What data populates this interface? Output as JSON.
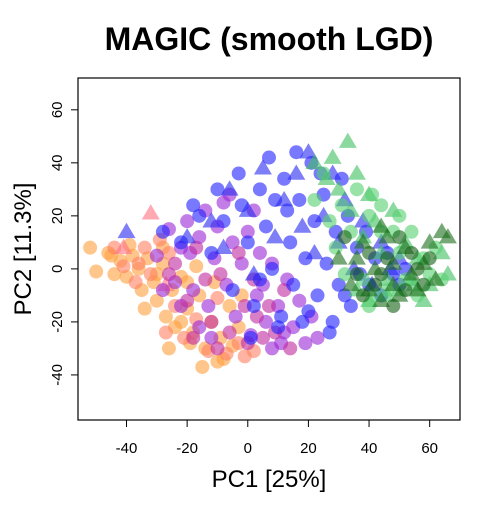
{
  "chart_data": {
    "type": "scatter",
    "title": "MAGIC (smooth LGD)",
    "xlabel": "PC1 [25%]",
    "ylabel": "PC2 [11.3%]",
    "xlim": [
      -56,
      70
    ],
    "ylim": [
      -57,
      72
    ],
    "xticks": [
      "-40",
      "-20",
      "0",
      "20",
      "40",
      "60"
    ],
    "yticks": [
      "-40",
      "-20",
      "0",
      "20",
      "40",
      "60"
    ],
    "grid": false,
    "legend": "none",
    "series": [
      {
        "color": "#ffa040",
        "marker": "circle",
        "points": [
          [
            -52,
            8
          ],
          [
            -50,
            -1
          ],
          [
            -45,
            5
          ],
          [
            -42,
            3
          ],
          [
            -40,
            -3
          ],
          [
            -38,
            5
          ],
          [
            -36,
            0
          ],
          [
            -35,
            -8
          ],
          [
            -33,
            4
          ],
          [
            -31,
            -5
          ],
          [
            -30,
            -12
          ],
          [
            -28,
            2
          ],
          [
            -27,
            -18
          ],
          [
            -25,
            -8
          ],
          [
            -24,
            -22
          ],
          [
            -22,
            -3
          ],
          [
            -20,
            -15
          ],
          [
            -19,
            -28
          ],
          [
            -18,
            -24
          ],
          [
            -16,
            -10
          ],
          [
            -14,
            -30
          ],
          [
            -12,
            -20
          ],
          [
            -11,
            -5
          ],
          [
            -9,
            -26
          ],
          [
            -8,
            -34
          ],
          [
            -6,
            -14
          ],
          [
            -5,
            -29
          ],
          [
            -3,
            -22
          ],
          [
            -2,
            -10
          ],
          [
            -15,
            -37
          ],
          [
            -10,
            -35
          ],
          [
            -26,
            -30
          ],
          [
            -34,
            -15
          ],
          [
            -44,
            -2
          ],
          [
            -46,
            6
          ],
          [
            -39,
            9
          ],
          [
            -28,
            8
          ],
          [
            -20,
            -5
          ],
          [
            -17,
            1
          ],
          [
            -22,
            -20
          ],
          [
            -30,
            -2
          ]
        ]
      },
      {
        "color": "#ff8060",
        "marker": "circle",
        "points": [
          [
            -44,
            8
          ],
          [
            -41,
            1
          ],
          [
            -37,
            -5
          ],
          [
            -34,
            8
          ],
          [
            -32,
            -2
          ],
          [
            -29,
            11
          ],
          [
            -26,
            6
          ],
          [
            -24,
            -14
          ],
          [
            -21,
            -26
          ],
          [
            -17,
            -19
          ],
          [
            -13,
            -31
          ],
          [
            -10,
            -11
          ],
          [
            -7,
            -32
          ],
          [
            -3,
            -28
          ],
          [
            -1,
            -33
          ],
          [
            2,
            -31
          ],
          [
            -27,
            -24
          ],
          [
            -36,
            2
          ]
        ]
      },
      {
        "color": "#ff7080",
        "marker": "triangle",
        "points": [
          [
            -32,
            21
          ],
          [
            -41,
            8
          ],
          [
            -27,
            -6
          ]
        ]
      },
      {
        "color": "#9b27d6",
        "marker": "circle",
        "points": [
          [
            -30,
            5
          ],
          [
            -26,
            15
          ],
          [
            -24,
            -5
          ],
          [
            -22,
            8
          ],
          [
            -20,
            18
          ],
          [
            -18,
            -8
          ],
          [
            -16,
            12
          ],
          [
            -14,
            22
          ],
          [
            -13,
            -14
          ],
          [
            -11,
            4
          ],
          [
            -10,
            16
          ],
          [
            -8,
            25
          ],
          [
            -7,
            -6
          ],
          [
            -5,
            10
          ],
          [
            -4,
            -18
          ],
          [
            -2,
            2
          ],
          [
            0,
            14
          ],
          [
            1,
            -25
          ],
          [
            3,
            -10
          ],
          [
            4,
            6
          ],
          [
            6,
            -20
          ],
          [
            8,
            2
          ],
          [
            10,
            -14
          ],
          [
            11,
            -28
          ],
          [
            13,
            -4
          ],
          [
            15,
            -22
          ],
          [
            17,
            -12
          ],
          [
            19,
            -28
          ],
          [
            21,
            -18
          ],
          [
            23,
            -26
          ],
          [
            -6,
            28
          ],
          [
            -16,
            -22
          ],
          [
            -22,
            -14
          ],
          [
            -28,
            -8
          ],
          [
            2,
            22
          ],
          [
            8,
            -30
          ],
          [
            -12,
            -26
          ],
          [
            -19,
            6
          ],
          [
            5,
            -6
          ],
          [
            12,
            -24
          ]
        ]
      },
      {
        "color": "#c02aa0",
        "marker": "circle",
        "points": [
          [
            -24,
            2
          ],
          [
            -20,
            -12
          ],
          [
            -17,
            8
          ],
          [
            -14,
            -4
          ],
          [
            -12,
            -20
          ],
          [
            -9,
            -2
          ],
          [
            -6,
            -24
          ],
          [
            -3,
            6
          ],
          [
            -1,
            -14
          ],
          [
            2,
            -4
          ],
          [
            5,
            -26
          ],
          [
            7,
            -14
          ],
          [
            9,
            -24
          ],
          [
            12,
            -8
          ],
          [
            14,
            -30
          ],
          [
            -18,
            -26
          ],
          [
            -26,
            -2
          ],
          [
            -10,
            -30
          ],
          [
            0,
            -28
          ],
          [
            3,
            -18
          ]
        ]
      },
      {
        "color": "#2020ff",
        "marker": "circle",
        "points": [
          [
            -28,
            14
          ],
          [
            -22,
            10
          ],
          [
            -16,
            20
          ],
          [
            -12,
            6
          ],
          [
            -8,
            18
          ],
          [
            -5,
            -8
          ],
          [
            -2,
            24
          ],
          [
            0,
            10
          ],
          [
            2,
            -14
          ],
          [
            4,
            30
          ],
          [
            6,
            16
          ],
          [
            8,
            0
          ],
          [
            10,
            -22
          ],
          [
            12,
            34
          ],
          [
            14,
            10
          ],
          [
            15,
            -6
          ],
          [
            17,
            26
          ],
          [
            18,
            -20
          ],
          [
            19,
            4
          ],
          [
            21,
            40
          ],
          [
            22,
            18
          ],
          [
            23,
            -10
          ],
          [
            25,
            28
          ],
          [
            26,
            2
          ],
          [
            27,
            -24
          ],
          [
            29,
            14
          ],
          [
            30,
            -6
          ],
          [
            31,
            34
          ],
          [
            33,
            20
          ],
          [
            34,
            -14
          ],
          [
            36,
            8
          ],
          [
            37,
            -2
          ],
          [
            39,
            14
          ],
          [
            40,
            -6
          ],
          [
            42,
            4
          ],
          [
            44,
            -10
          ],
          [
            46,
            6
          ],
          [
            48,
            -2
          ],
          [
            50,
            -6
          ],
          [
            52,
            0
          ],
          [
            -3,
            36
          ],
          [
            7,
            42
          ],
          [
            16,
            44
          ],
          [
            24,
            36
          ],
          [
            9,
            26
          ],
          [
            1,
            -26
          ],
          [
            11,
            -18
          ],
          [
            20,
            -16
          ],
          [
            28,
            -20
          ],
          [
            -10,
            30
          ],
          [
            -18,
            24
          ],
          [
            32,
            -10
          ],
          [
            4,
            -4
          ],
          [
            13,
            22
          ]
        ]
      },
      {
        "color": "#2828f0",
        "marker": "triangle",
        "points": [
          [
            -12,
            18
          ],
          [
            -6,
            30
          ],
          [
            0,
            22
          ],
          [
            5,
            38
          ],
          [
            9,
            12
          ],
          [
            12,
            26
          ],
          [
            16,
            36
          ],
          [
            18,
            16
          ],
          [
            20,
            44
          ],
          [
            22,
            6
          ],
          [
            25,
            20
          ],
          [
            28,
            36
          ],
          [
            30,
            10
          ],
          [
            32,
            26
          ],
          [
            35,
            0
          ],
          [
            38,
            18
          ],
          [
            41,
            -6
          ],
          [
            44,
            10
          ],
          [
            47,
            0
          ],
          [
            50,
            4
          ],
          [
            -20,
            12
          ],
          [
            -40,
            14
          ],
          [
            -8,
            8
          ],
          [
            2,
            -2
          ]
        ]
      },
      {
        "color": "#40c060",
        "marker": "triangle",
        "points": [
          [
            22,
            40
          ],
          [
            26,
            34
          ],
          [
            28,
            42
          ],
          [
            30,
            30
          ],
          [
            33,
            48
          ],
          [
            34,
            22
          ],
          [
            36,
            36
          ],
          [
            38,
            12
          ],
          [
            40,
            28
          ],
          [
            42,
            18
          ],
          [
            44,
            6
          ],
          [
            46,
            -4
          ],
          [
            48,
            22
          ],
          [
            50,
            -8
          ],
          [
            52,
            10
          ],
          [
            54,
            -4
          ],
          [
            56,
            4
          ],
          [
            58,
            -12
          ],
          [
            60,
            -6
          ],
          [
            64,
            6
          ],
          [
            66,
            -2
          ],
          [
            36,
            -8
          ],
          [
            40,
            -12
          ],
          [
            46,
            -10
          ],
          [
            55,
            -6
          ]
        ]
      },
      {
        "color": "#55d070",
        "marker": "circle",
        "points": [
          [
            22,
            26
          ],
          [
            25,
            36
          ],
          [
            27,
            18
          ],
          [
            29,
            8
          ],
          [
            31,
            24
          ],
          [
            32,
            -2
          ],
          [
            34,
            14
          ],
          [
            36,
            30
          ],
          [
            38,
            -4
          ],
          [
            40,
            20
          ],
          [
            41,
            28
          ],
          [
            42,
            -10
          ],
          [
            44,
            24
          ],
          [
            46,
            -8
          ],
          [
            48,
            14
          ],
          [
            50,
            20
          ],
          [
            52,
            -4
          ],
          [
            54,
            14
          ],
          [
            56,
            -10
          ],
          [
            58,
            4
          ],
          [
            60,
            -2
          ],
          [
            62,
            8
          ],
          [
            64,
            -4
          ],
          [
            40,
            -14
          ],
          [
            44,
            14
          ],
          [
            50,
            6
          ]
        ]
      },
      {
        "color": "#1b6e1b",
        "marker": "triangle",
        "points": [
          [
            30,
            4
          ],
          [
            34,
            -6
          ],
          [
            38,
            10
          ],
          [
            42,
            0
          ],
          [
            44,
            -12
          ],
          [
            46,
            12
          ],
          [
            48,
            2
          ],
          [
            50,
            -10
          ],
          [
            52,
            8
          ],
          [
            54,
            -2
          ],
          [
            56,
            -8
          ],
          [
            58,
            2
          ],
          [
            60,
            10
          ],
          [
            62,
            -4
          ],
          [
            64,
            14
          ],
          [
            66,
            12
          ],
          [
            44,
            16
          ],
          [
            48,
            -6
          ],
          [
            40,
            -8
          ],
          [
            36,
            4
          ]
        ]
      },
      {
        "color": "#156015",
        "marker": "circle",
        "points": [
          [
            32,
            12
          ],
          [
            36,
            -2
          ],
          [
            40,
            6
          ],
          [
            42,
            -6
          ],
          [
            46,
            4
          ],
          [
            48,
            -14
          ],
          [
            50,
            12
          ],
          [
            52,
            -8
          ],
          [
            54,
            6
          ],
          [
            56,
            0
          ],
          [
            58,
            -6
          ],
          [
            60,
            4
          ],
          [
            38,
            -10
          ],
          [
            44,
            -2
          ]
        ]
      }
    ]
  }
}
